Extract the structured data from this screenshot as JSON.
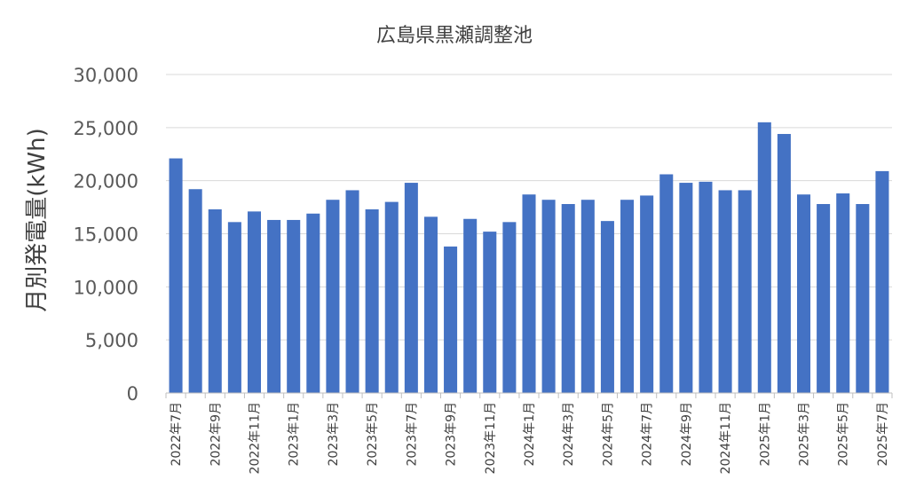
{
  "chart_data": {
    "type": "bar",
    "title": "広島県黒瀬調整池",
    "xlabel": "",
    "ylabel": "月別発電量(kWh)",
    "ylim": [
      0,
      30000
    ],
    "yticks": [
      "0",
      "5,000",
      "10,000",
      "15,000",
      "20,000",
      "25,000",
      "30,000"
    ],
    "ytick_values": [
      0,
      5000,
      10000,
      15000,
      20000,
      25000,
      30000
    ],
    "grid": true,
    "legend": "none",
    "bar_color": "#4472C4",
    "categories": [
      "2022年7月",
      "2022年8月",
      "2022年9月",
      "2022年10月",
      "2022年11月",
      "2022年12月",
      "2023年1月",
      "2023年2月",
      "2023年3月",
      "2023年4月",
      "2023年5月",
      "2023年6月",
      "2023年7月",
      "2023年8月",
      "2023年9月",
      "2023年10月",
      "2023年11月",
      "2023年12月",
      "2024年1月",
      "2024年2月",
      "2024年3月",
      "2024年4月",
      "2024年5月",
      "2024年6月",
      "2024年7月",
      "2024年8月",
      "2024年9月",
      "2024年10月",
      "2024年11月",
      "2024年12月",
      "2025年1月",
      "2025年2月",
      "2025年3月",
      "2025年4月",
      "2025年5月",
      "2025年6月",
      "2025年7月"
    ],
    "shown_tick_labels": [
      "2022年7月",
      "2022年9月",
      "2022年11月",
      "2023年1月",
      "2023年3月",
      "2023年5月",
      "2023年7月",
      "2023年9月",
      "2023年11月",
      "2024年1月",
      "2024年3月",
      "2024年5月",
      "2024年7月",
      "2024年9月",
      "2024年11月",
      "2025年1月",
      "2025年3月",
      "2025年5月",
      "2025年7月"
    ],
    "values": [
      22100,
      19200,
      17300,
      16100,
      17100,
      16300,
      16300,
      16900,
      18200,
      19100,
      17300,
      18000,
      19800,
      16600,
      13800,
      16400,
      15200,
      16100,
      18700,
      18200,
      17800,
      18200,
      16200,
      18200,
      18600,
      20600,
      19800,
      19900,
      19100,
      19100,
      25500,
      24400,
      18700,
      17800,
      18800,
      17800,
      20900
    ]
  }
}
